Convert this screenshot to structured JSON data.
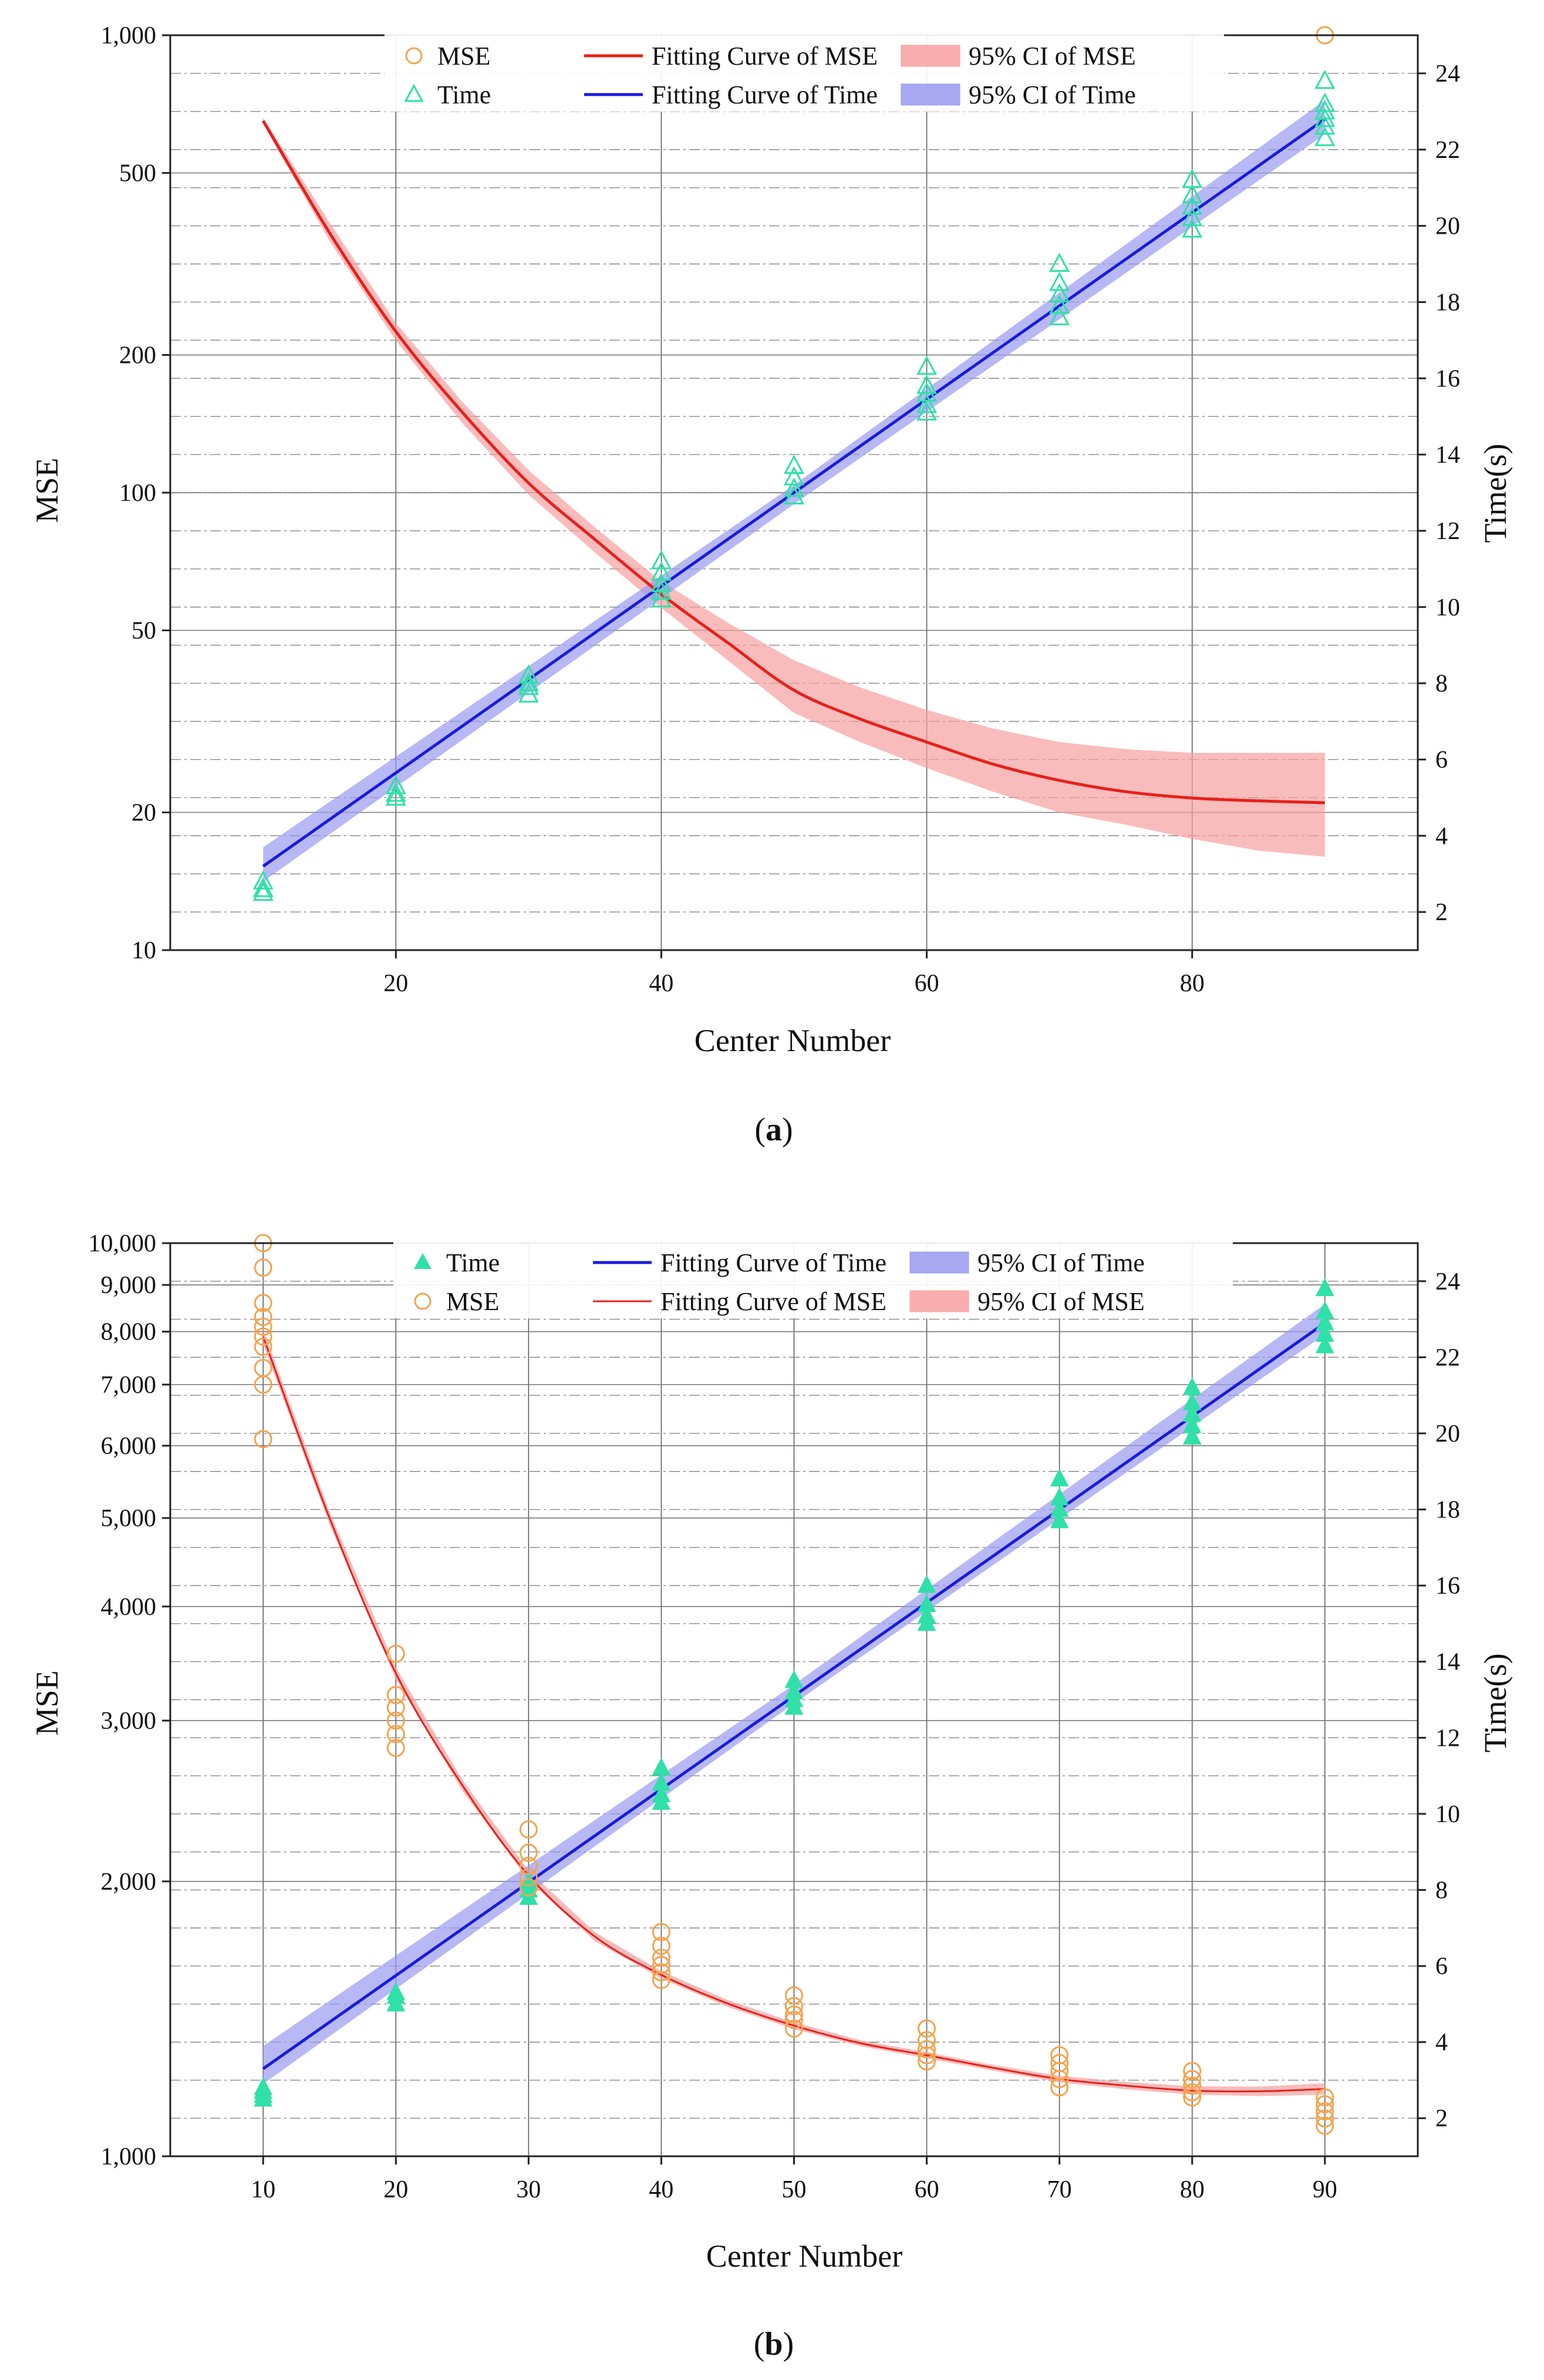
{
  "chart_data": [
    {
      "id": "a",
      "type": "scatter",
      "caption_letter": "a",
      "xlabel": "Center Number",
      "ylabel_left": "MSE",
      "ylabel_right": "Time(s)",
      "xlim": [
        3,
        97
      ],
      "ylim_left": [
        10,
        1000
      ],
      "yscale_left": "log",
      "ylim_right": [
        1,
        25
      ],
      "x_ticks": [
        20,
        40,
        60,
        80
      ],
      "x_tick_labels": [
        "20",
        "40",
        "60",
        "80"
      ],
      "y_left_ticks": [
        10,
        20,
        50,
        100,
        200,
        500,
        1000
      ],
      "y_left_tick_labels": [
        "10",
        "20",
        "50",
        "100",
        "200",
        "500",
        "1,000"
      ],
      "y_right_ticks": [
        2,
        4,
        6,
        8,
        10,
        12,
        14,
        16,
        18,
        20,
        22,
        24
      ],
      "y_right_tick_labels": [
        "2",
        "4",
        "6",
        "8",
        "10",
        "12",
        "14",
        "16",
        "18",
        "20",
        "22",
        "24"
      ],
      "legend_position": "top",
      "legend": [
        {
          "key": "mse_points",
          "label": "MSE",
          "symbol": "open-circle",
          "color": "#f5a34f"
        },
        {
          "key": "mse_fit",
          "label": "Fitting Curve of MSE",
          "symbol": "line",
          "color": "#e8201a"
        },
        {
          "key": "mse_ci",
          "label": "95% CI of MSE",
          "symbol": "band",
          "color": "#f7a0a0"
        },
        {
          "key": "time_points",
          "label": "Time",
          "symbol": "open-triangle",
          "color": "#2fe0a8"
        },
        {
          "key": "time_fit",
          "label": "Fitting Curve of Time",
          "symbol": "line",
          "color": "#1a1ae0"
        },
        {
          "key": "time_ci",
          "label": "95% CI of Time",
          "symbol": "band",
          "color": "#9a9af0"
        }
      ],
      "series": [
        {
          "name": "Fitting Curve of MSE",
          "axis": "left",
          "kind": "line",
          "color": "#e8201a",
          "x": [
            10,
            15,
            20,
            25,
            30,
            35,
            40,
            45,
            50,
            55,
            60,
            65,
            70,
            75,
            80,
            85,
            90
          ],
          "y": [
            650,
            370,
            225,
            150,
            105,
            79,
            60,
            47,
            37,
            32,
            28.5,
            25.5,
            23.5,
            22.2,
            21.5,
            21.2,
            21
          ]
        },
        {
          "name": "95% CI of MSE",
          "axis": "left",
          "kind": "band",
          "color": "#f7a0a0",
          "x": [
            10,
            15,
            20,
            25,
            30,
            35,
            40,
            45,
            50,
            55,
            60,
            65,
            70,
            75,
            80,
            85,
            90
          ],
          "lower": [
            640,
            355,
            215,
            142,
            99,
            74,
            56,
            43,
            33,
            28.5,
            25,
            22.2,
            20,
            18.8,
            17.5,
            16.5,
            16
          ],
          "upper": [
            660,
            390,
            235,
            158,
            112,
            84,
            64,
            52,
            43,
            37.5,
            33.5,
            30.5,
            28.5,
            27.5,
            27,
            27,
            27
          ]
        },
        {
          "name": "Fitting Curve of Time",
          "axis": "right",
          "kind": "line",
          "color": "#1a1ae0",
          "x": [
            10,
            90
          ],
          "y": [
            3.2,
            22.8
          ]
        },
        {
          "name": "95% CI of Time",
          "axis": "right",
          "kind": "band",
          "color": "#9a9af0",
          "x": [
            10,
            50,
            90
          ],
          "lower": [
            2.8,
            12.7,
            22.4
          ],
          "upper": [
            3.7,
            13.2,
            23.3
          ]
        },
        {
          "name": "Time",
          "axis": "right",
          "kind": "scatter",
          "marker": "open-triangle",
          "color": "#2fe0a8",
          "points": [
            [
              10,
              2.6
            ],
            [
              10,
              2.8
            ],
            [
              10,
              2.5
            ],
            [
              20,
              5.3
            ],
            [
              20,
              5.1
            ],
            [
              20,
              5.0
            ],
            [
              30,
              8.2
            ],
            [
              30,
              7.9
            ],
            [
              30,
              7.7
            ],
            [
              30,
              8.0
            ],
            [
              40,
              11.2
            ],
            [
              40,
              10.9
            ],
            [
              40,
              10.6
            ],
            [
              40,
              10.4
            ],
            [
              40,
              10.2
            ],
            [
              50,
              13.7
            ],
            [
              50,
              13.4
            ],
            [
              50,
              13.1
            ],
            [
              50,
              12.9
            ],
            [
              60,
              16.3
            ],
            [
              60,
              15.8
            ],
            [
              60,
              15.6
            ],
            [
              60,
              15.3
            ],
            [
              60,
              15.1
            ],
            [
              70,
              19.0
            ],
            [
              70,
              18.5
            ],
            [
              70,
              18.2
            ],
            [
              70,
              17.9
            ],
            [
              70,
              17.6
            ],
            [
              80,
              21.2
            ],
            [
              80,
              20.8
            ],
            [
              80,
              20.5
            ],
            [
              80,
              20.2
            ],
            [
              80,
              19.9
            ],
            [
              90,
              23.8
            ],
            [
              90,
              23.2
            ],
            [
              90,
              23.0
            ],
            [
              90,
              22.8
            ],
            [
              90,
              22.6
            ],
            [
              90,
              22.3
            ]
          ]
        },
        {
          "name": "MSE",
          "axis": "left",
          "kind": "scatter",
          "marker": "open-circle",
          "color": "#f5a34f",
          "points": [
            [
              90,
              1000
            ]
          ]
        }
      ]
    },
    {
      "id": "b",
      "type": "scatter",
      "caption_letter": "b",
      "xlabel": "Center Number",
      "ylabel_left": "MSE",
      "ylabel_right": "Time(s)",
      "xlim": [
        3,
        97
      ],
      "ylim_left": [
        1000,
        10000
      ],
      "yscale_left": "log",
      "ylim_right": [
        1,
        25
      ],
      "x_ticks": [
        10,
        20,
        30,
        40,
        50,
        60,
        70,
        80,
        90
      ],
      "x_tick_labels": [
        "10",
        "20",
        "30",
        "40",
        "50",
        "60",
        "70",
        "80",
        "90"
      ],
      "y_left_ticks": [
        1000,
        2000,
        3000,
        4000,
        5000,
        6000,
        7000,
        8000,
        9000,
        10000
      ],
      "y_left_tick_labels": [
        "1,000",
        "2,000",
        "3,000",
        "4,000",
        "5,000",
        "6,000",
        "7,000",
        "8,000",
        "9,000",
        "10,000"
      ],
      "y_right_ticks": [
        2,
        4,
        6,
        8,
        10,
        12,
        14,
        16,
        18,
        20,
        22,
        24
      ],
      "y_right_tick_labels": [
        "2",
        "4",
        "6",
        "8",
        "10",
        "12",
        "14",
        "16",
        "18",
        "20",
        "22",
        "24"
      ],
      "legend_position": "top",
      "legend": [
        {
          "key": "time_points",
          "label": "Time",
          "symbol": "filled-triangle",
          "color": "#2fe0a8"
        },
        {
          "key": "time_fit",
          "label": "Fitting Curve of Time",
          "symbol": "line",
          "color": "#1a1ae0"
        },
        {
          "key": "time_ci",
          "label": "95% CI of Time",
          "symbol": "band",
          "color": "#9a9af0"
        },
        {
          "key": "mse_points",
          "label": "MSE",
          "symbol": "open-circle",
          "color": "#f5a34f"
        },
        {
          "key": "mse_fit",
          "label": "Fitting Curve of MSE",
          "symbol": "thin-line",
          "color": "#e8201a"
        },
        {
          "key": "mse_ci",
          "label": "95% CI of MSE",
          "symbol": "band",
          "color": "#f7a0a0"
        }
      ],
      "series": [
        {
          "name": "Fitting Curve of MSE",
          "axis": "left",
          "kind": "line",
          "color": "#e8201a",
          "x": [
            10,
            15,
            20,
            25,
            30,
            35,
            40,
            45,
            50,
            55,
            60,
            65,
            70,
            75,
            80,
            85,
            90
          ],
          "y": [
            7900,
            5000,
            3380,
            2550,
            2030,
            1740,
            1580,
            1470,
            1390,
            1330,
            1290,
            1250,
            1215,
            1195,
            1180,
            1178,
            1185
          ]
        },
        {
          "name": "95% CI of MSE",
          "axis": "left",
          "kind": "band",
          "color": "#f7a0a0",
          "x": [
            10,
            15,
            20,
            25,
            30,
            35,
            40,
            45,
            50,
            55,
            60,
            65,
            70,
            75,
            80,
            85,
            90
          ],
          "lower": [
            7750,
            4920,
            3330,
            2515,
            2005,
            1720,
            1565,
            1457,
            1378,
            1320,
            1280,
            1241,
            1205,
            1184,
            1168,
            1164,
            1168
          ],
          "upper": [
            8050,
            5080,
            3430,
            2585,
            2055,
            1760,
            1595,
            1483,
            1402,
            1340,
            1300,
            1259,
            1225,
            1206,
            1193,
            1192,
            1202
          ]
        },
        {
          "name": "Fitting Curve of Time",
          "axis": "right",
          "kind": "line",
          "color": "#1a1ae0",
          "x": [
            10,
            90
          ],
          "y": [
            3.3,
            22.9
          ]
        },
        {
          "name": "95% CI of Time",
          "axis": "right",
          "kind": "band",
          "color": "#9a9af0",
          "x": [
            10,
            50,
            90
          ],
          "lower": [
            2.9,
            12.9,
            22.6
          ],
          "upper": [
            3.9,
            13.4,
            23.4
          ]
        },
        {
          "name": "Time",
          "axis": "right",
          "kind": "scatter",
          "marker": "filled-triangle",
          "color": "#2fe0a8",
          "points": [
            [
              10,
              2.6
            ],
            [
              10,
              2.8
            ],
            [
              10,
              2.5
            ],
            [
              10,
              2.7
            ],
            [
              20,
              5.0
            ],
            [
              20,
              5.2
            ],
            [
              20,
              5.3
            ],
            [
              30,
              7.8
            ],
            [
              30,
              8.0
            ],
            [
              30,
              8.2
            ],
            [
              40,
              11.2
            ],
            [
              40,
              10.8
            ],
            [
              40,
              10.5
            ],
            [
              40,
              10.3
            ],
            [
              50,
              13.5
            ],
            [
              50,
              13.2
            ],
            [
              50,
              13.0
            ],
            [
              50,
              12.8
            ],
            [
              60,
              16.0
            ],
            [
              60,
              15.5
            ],
            [
              60,
              15.2
            ],
            [
              60,
              15.0
            ],
            [
              70,
              18.8
            ],
            [
              70,
              18.3
            ],
            [
              70,
              18.0
            ],
            [
              70,
              17.7
            ],
            [
              80,
              21.2
            ],
            [
              80,
              20.8
            ],
            [
              80,
              20.5
            ],
            [
              80,
              20.2
            ],
            [
              80,
              19.9
            ],
            [
              90,
              23.8
            ],
            [
              90,
              23.2
            ],
            [
              90,
              22.9
            ],
            [
              90,
              22.6
            ],
            [
              90,
              22.3
            ]
          ]
        },
        {
          "name": "MSE",
          "axis": "left",
          "kind": "scatter",
          "marker": "open-circle",
          "color": "#f5a34f",
          "points": [
            [
              10,
              10000
            ],
            [
              10,
              9400
            ],
            [
              10,
              8600
            ],
            [
              10,
              8300
            ],
            [
              10,
              8100
            ],
            [
              10,
              7900
            ],
            [
              10,
              7700
            ],
            [
              10,
              7300
            ],
            [
              10,
              7000
            ],
            [
              10,
              6100
            ],
            [
              20,
              3550
            ],
            [
              20,
              3200
            ],
            [
              20,
              3100
            ],
            [
              20,
              3000
            ],
            [
              20,
              2900
            ],
            [
              20,
              2800
            ],
            [
              30,
              2280
            ],
            [
              30,
              2150
            ],
            [
              30,
              2080
            ],
            [
              30,
              2020
            ],
            [
              30,
              1970
            ],
            [
              40,
              1760
            ],
            [
              40,
              1700
            ],
            [
              40,
              1650
            ],
            [
              40,
              1620
            ],
            [
              40,
              1590
            ],
            [
              40,
              1560
            ],
            [
              50,
              1500
            ],
            [
              50,
              1460
            ],
            [
              50,
              1430
            ],
            [
              50,
              1410
            ],
            [
              50,
              1380
            ],
            [
              60,
              1380
            ],
            [
              60,
              1340
            ],
            [
              60,
              1310
            ],
            [
              60,
              1290
            ],
            [
              60,
              1270
            ],
            [
              70,
              1290
            ],
            [
              70,
              1265
            ],
            [
              70,
              1240
            ],
            [
              70,
              1215
            ],
            [
              70,
              1190
            ],
            [
              80,
              1240
            ],
            [
              80,
              1215
            ],
            [
              80,
              1195
            ],
            [
              80,
              1175
            ],
            [
              80,
              1160
            ],
            [
              90,
              1160
            ],
            [
              90,
              1140
            ],
            [
              90,
              1120
            ],
            [
              90,
              1100
            ],
            [
              90,
              1080
            ]
          ]
        }
      ]
    }
  ]
}
